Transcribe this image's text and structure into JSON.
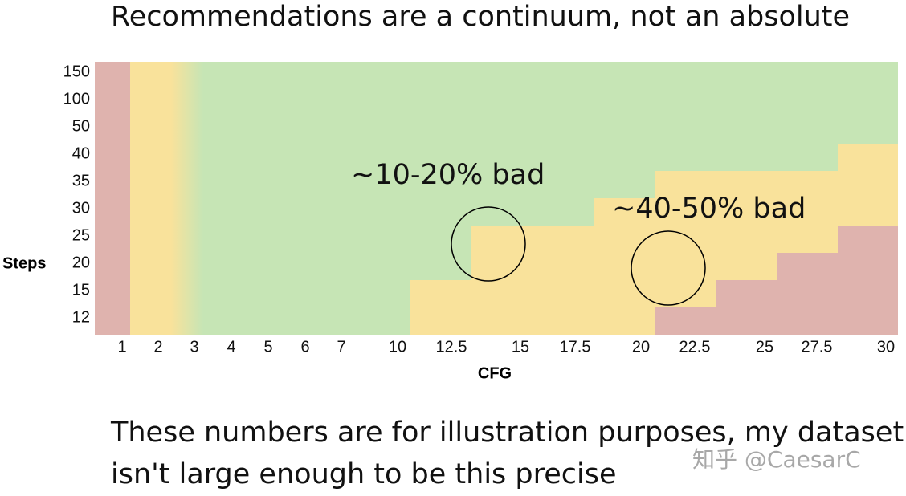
{
  "title": "Recommendations are a continuum, not an absolute",
  "chart": {
    "y_axis_label": "Steps",
    "x_axis_label": "CFG",
    "y_labels": [
      "150",
      "100",
      "50",
      "40",
      "35",
      "30",
      "25",
      "20",
      "15",
      "12"
    ],
    "x_labels": [
      "1",
      "2",
      "3",
      "4",
      "5",
      "6",
      "7",
      "10",
      "12.5",
      "15",
      "17.5",
      "20",
      "22.5",
      "25",
      "27.5",
      "30"
    ],
    "annotations": [
      "~10-20% bad",
      "~40-50% bad"
    ]
  },
  "footer": {
    "lines": [
      "These numbers are for illustration purposes, my dataset",
      "isn't large enough to be this precise"
    ]
  },
  "watermark": "知乎 @CaesarC"
}
